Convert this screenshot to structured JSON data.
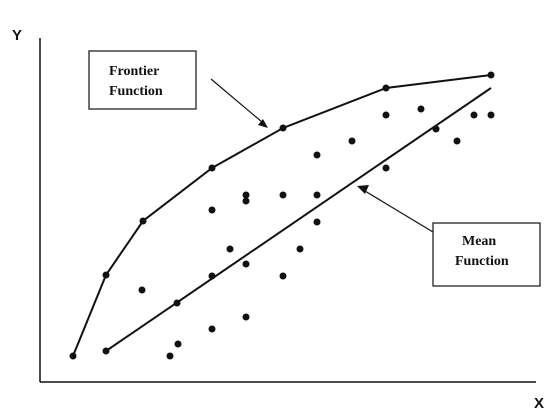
{
  "axes": {
    "x_label": "X",
    "y_label": "Y"
  },
  "labels": {
    "frontier": {
      "line1": "Frontier",
      "line2": "Function"
    },
    "mean": {
      "line1": "Mean",
      "line2": "Function"
    }
  },
  "colors": {
    "ink": "#111111",
    "background": "#ffffff"
  }
}
